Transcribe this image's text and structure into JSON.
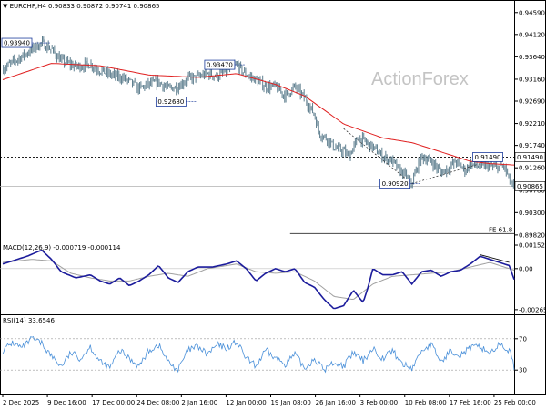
{
  "header": {
    "symbol_label": "EURCHF,H4",
    "ohlc": "0.90833 0.90872 0.90741 0.90865"
  },
  "watermark": "ActionForex",
  "colors": {
    "candle": "#5f7f8f",
    "ma": "#e02020",
    "macd": "#1c1c9c",
    "signal": "#a0a0a0",
    "rsi": "#4a90d9",
    "level_marker": "#1c3c9c"
  },
  "chart_data": [
    {
      "type": "candlestick",
      "title": "EURCHF,H4",
      "x_ticks": [
        "2 Dec 2025",
        "9 Dec 16:00",
        "17 Dec 00:00",
        "24 Dec 08:00",
        "2 Jan 16:00",
        "12 Jan 00:00",
        "19 Jan 08:00",
        "26 Jan 16:00",
        "3 Feb 00:00",
        "10 Feb 08:00",
        "17 Feb 16:00",
        "25 Feb 00:00"
      ],
      "y_ticks": [
        "0.94590",
        "0.94120",
        "0.93640",
        "0.93160",
        "0.92690",
        "0.92210",
        "0.91740",
        "0.91260",
        "0.90780",
        "0.90300",
        "0.89820"
      ],
      "ylim": [
        0.8972,
        0.9482
      ],
      "price_path": [
        [
          0,
          0.9338
        ],
        [
          2,
          0.9352
        ],
        [
          5,
          0.9372
        ],
        [
          8,
          0.9394
        ],
        [
          10,
          0.938
        ],
        [
          12,
          0.9356
        ],
        [
          15,
          0.9343
        ],
        [
          18,
          0.9348
        ],
        [
          20,
          0.9335
        ],
        [
          22,
          0.9326
        ],
        [
          25,
          0.9318
        ],
        [
          28,
          0.9296
        ],
        [
          30,
          0.9305
        ],
        [
          32,
          0.931
        ],
        [
          34,
          0.9296
        ],
        [
          36,
          0.93
        ],
        [
          38,
          0.9318
        ],
        [
          40,
          0.932
        ],
        [
          42,
          0.9328
        ],
        [
          44,
          0.9322
        ],
        [
          46,
          0.9334
        ],
        [
          48,
          0.9347
        ],
        [
          50,
          0.9325
        ],
        [
          52,
          0.9315
        ],
        [
          54,
          0.93
        ],
        [
          56,
          0.93
        ],
        [
          58,
          0.928
        ],
        [
          60,
          0.93
        ],
        [
          62,
          0.9275
        ],
        [
          64,
          0.924
        ],
        [
          65,
          0.92
        ],
        [
          67,
          0.9185
        ],
        [
          68,
          0.917
        ],
        [
          70,
          0.9162
        ],
        [
          71,
          0.915
        ],
        [
          73,
          0.919
        ],
        [
          74,
          0.9185
        ],
        [
          76,
          0.917
        ],
        [
          78,
          0.915
        ],
        [
          80,
          0.914
        ],
        [
          82,
          0.9115
        ],
        [
          84,
          0.9092
        ],
        [
          85,
          0.9125
        ],
        [
          86,
          0.915
        ],
        [
          88,
          0.914
        ],
        [
          90,
          0.9115
        ],
        [
          92,
          0.913
        ],
        [
          93,
          0.914
        ],
        [
          95,
          0.912
        ],
        [
          96,
          0.9135
        ],
        [
          98,
          0.9128
        ],
        [
          100,
          0.9132
        ],
        [
          101,
          0.9125
        ],
        [
          102,
          0.913
        ],
        [
          103,
          0.9128
        ],
        [
          104,
          0.91
        ],
        [
          105,
          0.908
        ]
      ],
      "ma_path": [
        [
          0,
          0.9315
        ],
        [
          10,
          0.935
        ],
        [
          20,
          0.9345
        ],
        [
          30,
          0.9325
        ],
        [
          40,
          0.932
        ],
        [
          48,
          0.9328
        ],
        [
          56,
          0.9305
        ],
        [
          62,
          0.928
        ],
        [
          70,
          0.922
        ],
        [
          78,
          0.919
        ],
        [
          84,
          0.918
        ],
        [
          90,
          0.916
        ],
        [
          96,
          0.914
        ],
        [
          100,
          0.9135
        ],
        [
          105,
          0.9132
        ]
      ],
      "dashed_level": {
        "value": 0.9149,
        "label": "0.91490"
      },
      "current_price": {
        "value": 0.90865,
        "label": "0.90865"
      },
      "fib_line": {
        "value": 0.8985,
        "label": "FE 61.8"
      },
      "annotations": [
        {
          "label": "0.93940",
          "x": 8,
          "price": 0.9394,
          "box": "left"
        },
        {
          "label": "0.92680",
          "x": 38,
          "price": 0.9268,
          "box": "left"
        },
        {
          "label": "0.93470",
          "x": 48,
          "price": 0.9347,
          "box": "left"
        },
        {
          "label": "0.90920",
          "x": 84,
          "price": 0.9092,
          "box": "left"
        },
        {
          "label": "0.91490",
          "x": 98,
          "price": 0.9149,
          "box": "left"
        }
      ],
      "trendlines": [
        {
          "from": [
            70,
            0.921
          ],
          "to": [
            84,
            0.9092
          ]
        },
        {
          "from": [
            84,
            0.9092
          ],
          "to": [
            98,
            0.9135
          ]
        }
      ]
    },
    {
      "type": "line",
      "title": "MACD(12,26,9) -0.000719 -0.000114",
      "y_ticks": [
        "0.001522",
        "0.00",
        "-0.002657"
      ],
      "ylim": [
        -0.0029,
        0.0017
      ],
      "series": [
        {
          "values": [
            [
              0,
              0.0003
            ],
            [
              5,
              0.0008
            ],
            [
              8,
              0.0012
            ],
            [
              10,
              0.0006
            ],
            [
              12,
              -0.0002
            ],
            [
              15,
              -0.0006
            ],
            [
              18,
              -0.0004
            ],
            [
              20,
              -0.0008
            ],
            [
              22,
              -0.001
            ],
            [
              24,
              -0.0006
            ],
            [
              26,
              -0.0011
            ],
            [
              28,
              -0.0008
            ],
            [
              30,
              -0.0004
            ],
            [
              32,
              0.0002
            ],
            [
              34,
              -0.0006
            ],
            [
              36,
              -0.0009
            ],
            [
              38,
              -0.0002
            ],
            [
              40,
              0.0001
            ],
            [
              43,
              0.0001
            ],
            [
              46,
              0.0003
            ],
            [
              48,
              0.0005
            ],
            [
              50,
              0.0
            ],
            [
              52,
              -0.0008
            ],
            [
              54,
              -0.0003
            ],
            [
              56,
              0.0
            ],
            [
              58,
              -0.0002
            ],
            [
              60,
              0.0
            ],
            [
              62,
              -0.0009
            ],
            [
              64,
              -0.0012
            ],
            [
              66,
              -0.002
            ],
            [
              68,
              -0.0026
            ],
            [
              70,
              -0.0024
            ],
            [
              72,
              -0.0014
            ],
            [
              74,
              -0.0022
            ],
            [
              75,
              -0.0012
            ],
            [
              76,
              0.0
            ],
            [
              78,
              -0.0004
            ],
            [
              80,
              -0.0004
            ],
            [
              82,
              -0.0002
            ],
            [
              84,
              -0.001
            ],
            [
              86,
              -0.0002
            ],
            [
              88,
              -0.0001
            ],
            [
              90,
              -0.0005
            ],
            [
              92,
              -0.0002
            ],
            [
              94,
              -0.0001
            ],
            [
              96,
              0.0003
            ],
            [
              98,
              0.0008
            ],
            [
              100,
              0.0006
            ],
            [
              102,
              0.0004
            ],
            [
              104,
              0.0002
            ],
            [
              105,
              -0.0007
            ]
          ]
        },
        {
          "values": [
            [
              0,
              0.0004
            ],
            [
              6,
              0.0006
            ],
            [
              10,
              0.0005
            ],
            [
              14,
              -0.0003
            ],
            [
              18,
              -0.0006
            ],
            [
              22,
              -0.0008
            ],
            [
              26,
              -0.0008
            ],
            [
              30,
              -0.0005
            ],
            [
              34,
              -0.0003
            ],
            [
              38,
              -0.0005
            ],
            [
              42,
              0.0
            ],
            [
              48,
              0.0003
            ],
            [
              52,
              -0.0002
            ],
            [
              56,
              -0.0003
            ],
            [
              60,
              -0.0002
            ],
            [
              64,
              -0.0008
            ],
            [
              68,
              -0.0018
            ],
            [
              72,
              -0.002
            ],
            [
              76,
              -0.001
            ],
            [
              80,
              -0.0005
            ],
            [
              84,
              -0.0004
            ],
            [
              88,
              -0.0003
            ],
            [
              92,
              -0.0002
            ],
            [
              96,
              0.0001
            ],
            [
              100,
              0.0004
            ],
            [
              105,
              -0.0001
            ]
          ]
        }
      ],
      "divergence_line": {
        "from": [
          98,
          0.0009
        ],
        "to": [
          104,
          0.0004
        ]
      }
    },
    {
      "type": "line",
      "title": "RSI(14) 33.6546",
      "y_ticks": [
        "70",
        "30"
      ],
      "ylim": [
        0,
        100
      ],
      "series": [
        {
          "values": [
            [
              0,
              55
            ],
            [
              2,
              65
            ],
            [
              4,
              58
            ],
            [
              6,
              70
            ],
            [
              8,
              64
            ],
            [
              10,
              48
            ],
            [
              12,
              35
            ],
            [
              14,
              52
            ],
            [
              16,
              45
            ],
            [
              18,
              60
            ],
            [
              20,
              40
            ],
            [
              22,
              33
            ],
            [
              24,
              55
            ],
            [
              26,
              45
            ],
            [
              28,
              35
            ],
            [
              30,
              55
            ],
            [
              32,
              62
            ],
            [
              34,
              40
            ],
            [
              36,
              30
            ],
            [
              38,
              55
            ],
            [
              40,
              60
            ],
            [
              42,
              50
            ],
            [
              44,
              62
            ],
            [
              46,
              58
            ],
            [
              48,
              66
            ],
            [
              50,
              45
            ],
            [
              52,
              35
            ],
            [
              54,
              55
            ],
            [
              56,
              45
            ],
            [
              58,
              38
            ],
            [
              60,
              50
            ],
            [
              62,
              32
            ],
            [
              64,
              45
            ],
            [
              66,
              30
            ],
            [
              68,
              40
            ],
            [
              70,
              35
            ],
            [
              72,
              52
            ],
            [
              74,
              42
            ],
            [
              76,
              58
            ],
            [
              78,
              45
            ],
            [
              80,
              55
            ],
            [
              82,
              38
            ],
            [
              84,
              32
            ],
            [
              86,
              55
            ],
            [
              88,
              62
            ],
            [
              90,
              40
            ],
            [
              92,
              55
            ],
            [
              94,
              50
            ],
            [
              96,
              58
            ],
            [
              98,
              60
            ],
            [
              100,
              52
            ],
            [
              102,
              62
            ],
            [
              104,
              55
            ],
            [
              105,
              34
            ]
          ]
        }
      ]
    }
  ]
}
